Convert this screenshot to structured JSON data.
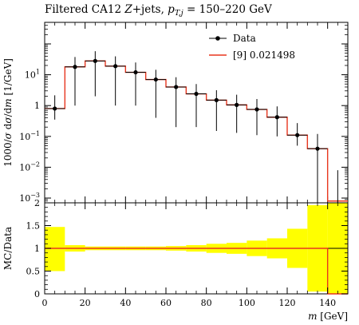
{
  "title": "Filtered CA12 Z+jets, p_T,j = 150–220 GeV",
  "chart_data": [
    {
      "type": "line",
      "panel": "main",
      "ylabel": "1000/σ dσ/dm [1/GeV]",
      "yscale": "log",
      "ylim": [
        0.0007,
        500
      ],
      "xlim": [
        0,
        150
      ],
      "y_tick_labels": [
        "10^1",
        "1",
        "10^-1",
        "10^-2",
        "10^-3"
      ],
      "legend_position": "top-right",
      "series": [
        {
          "name": "Data",
          "style": "points-with-errorbars",
          "color": "#000000",
          "x": [
            5,
            15,
            25,
            35,
            45,
            55,
            65,
            75,
            85,
            95,
            105,
            115,
            125,
            135,
            145
          ],
          "y": [
            0.8,
            18,
            28,
            19,
            12,
            7,
            4,
            2.4,
            1.5,
            1.05,
            0.75,
            0.42,
            0.11,
            0.04,
            null
          ],
          "y_err_low": [
            0.45,
            17,
            26,
            18,
            11,
            6.6,
            3.8,
            2.2,
            1.35,
            0.92,
            0.64,
            0.32,
            0.06,
            0.0395,
            null
          ],
          "y_err_high": [
            1.35,
            19.5,
            30,
            20.5,
            13,
            7.5,
            4.3,
            2.6,
            1.65,
            1.2,
            0.88,
            0.52,
            0.16,
            0.08,
            0.008
          ]
        },
        {
          "name": "[9] 0.021498",
          "style": "step",
          "color": "#e8361e",
          "bin_edges": [
            0,
            10,
            20,
            30,
            40,
            50,
            60,
            70,
            80,
            90,
            100,
            110,
            120,
            130,
            140,
            150
          ],
          "values": [
            0.8,
            18,
            28,
            19,
            12,
            7,
            4,
            2.4,
            1.5,
            1.05,
            0.75,
            0.42,
            0.11,
            0.04,
            0.0008
          ]
        }
      ]
    },
    {
      "type": "line",
      "panel": "ratio",
      "ylabel": "MC/Data",
      "xlabel": "m [GeV]",
      "ylim": [
        0,
        2
      ],
      "xlim": [
        0,
        150
      ],
      "y_tick_labels": [
        "0",
        "0.5",
        "1",
        "1.5",
        "2"
      ],
      "x_tick_labels": [
        "0",
        "20",
        "40",
        "60",
        "80",
        "100",
        "120",
        "140"
      ],
      "bands": {
        "color": "#ffff00",
        "bin_edges": [
          0,
          10,
          20,
          30,
          40,
          50,
          60,
          70,
          80,
          90,
          100,
          110,
          120,
          130,
          140,
          150
        ],
        "low": [
          0.5,
          0.93,
          0.96,
          0.96,
          0.96,
          0.96,
          0.95,
          0.93,
          0.9,
          0.88,
          0.83,
          0.78,
          0.57,
          0.05,
          0.0
        ],
        "high": [
          1.47,
          1.07,
          1.04,
          1.04,
          1.04,
          1.04,
          1.05,
          1.07,
          1.1,
          1.12,
          1.17,
          1.22,
          1.43,
          1.95,
          2.0
        ]
      },
      "ratio_line": {
        "color": "#e8361e",
        "bin_edges": [
          0,
          10,
          20,
          30,
          40,
          50,
          60,
          70,
          80,
          90,
          100,
          110,
          120,
          130,
          140,
          150
        ],
        "values": [
          1,
          1,
          1,
          1,
          1,
          1,
          1,
          1,
          1,
          1,
          1,
          1,
          1,
          1,
          0
        ]
      }
    }
  ]
}
